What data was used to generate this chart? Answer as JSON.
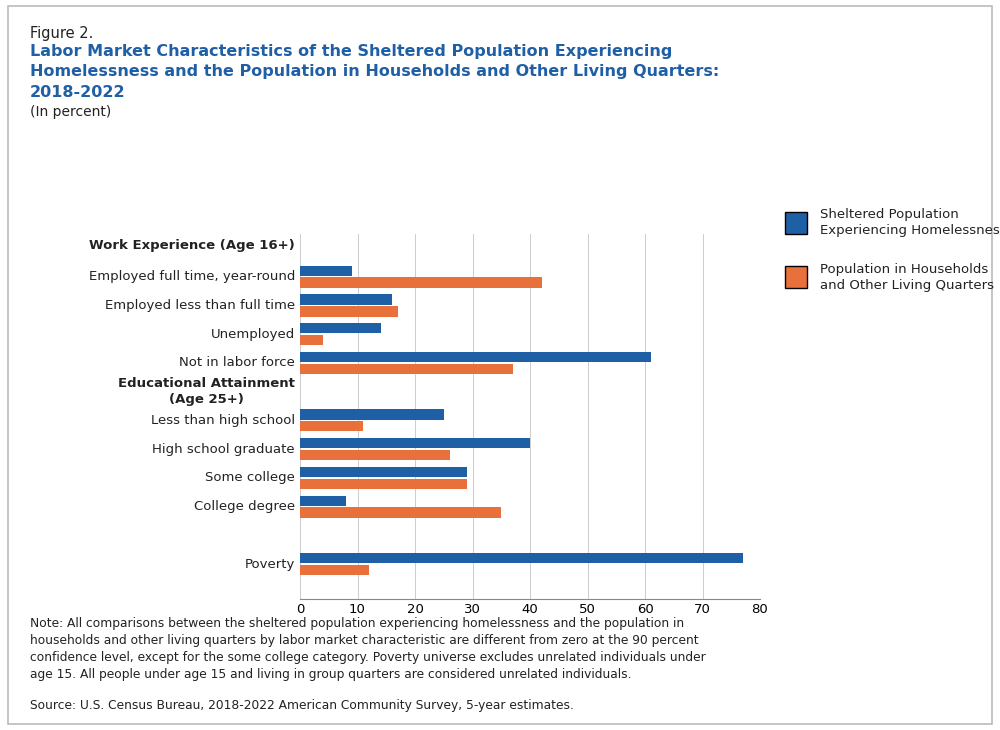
{
  "figure_label": "Figure 2.",
  "title_line1": "Labor Market Characteristics of the Sheltered Population Experiencing",
  "title_line2": "Homelessness and the Population in Households and Other Living Quarters:",
  "title_line3": "2018-2022",
  "subtitle": "(In percent)",
  "section_header_work": "Work Experience (Age 16+)",
  "section_header_edu": "Educational Attainment\n(Age 25+)",
  "bar_categories": [
    "Employed full time, year-round",
    "Employed less than full time",
    "Unemployed",
    "Not in labor force",
    "Less than high school",
    "High school graduate",
    "Some college",
    "College degree",
    "Poverty"
  ],
  "sheltered_bars": [
    9,
    16,
    14,
    61,
    25,
    40,
    29,
    8,
    77
  ],
  "household_bars": [
    42,
    17,
    4,
    37,
    11,
    26,
    29,
    35,
    12
  ],
  "color_sheltered": "#1F5FA6",
  "color_household": "#E8703A",
  "legend_label_sheltered": "Sheltered Population\nExperiencing Homelessness",
  "legend_label_household": "Population in Households\nand Other Living Quarters",
  "xlim": [
    0,
    80
  ],
  "xticks": [
    0,
    10,
    20,
    30,
    40,
    50,
    60,
    70,
    80
  ],
  "note_text": "Note: All comparisons between the sheltered population experiencing homelessness and the population in\nhouseholds and other living quarters by labor market characteristic are different from zero at the 90 percent\nconfidence level, except for the some college category. Poverty universe excludes unrelated individuals under\nage 15. All people under age 15 and living in group quarters are considered unrelated individuals.",
  "source_text": "Source: U.S. Census Bureau, 2018-2022 American Community Survey, 5-year estimates.",
  "background_color": "#FFFFFF",
  "border_color": "#BBBBBB"
}
